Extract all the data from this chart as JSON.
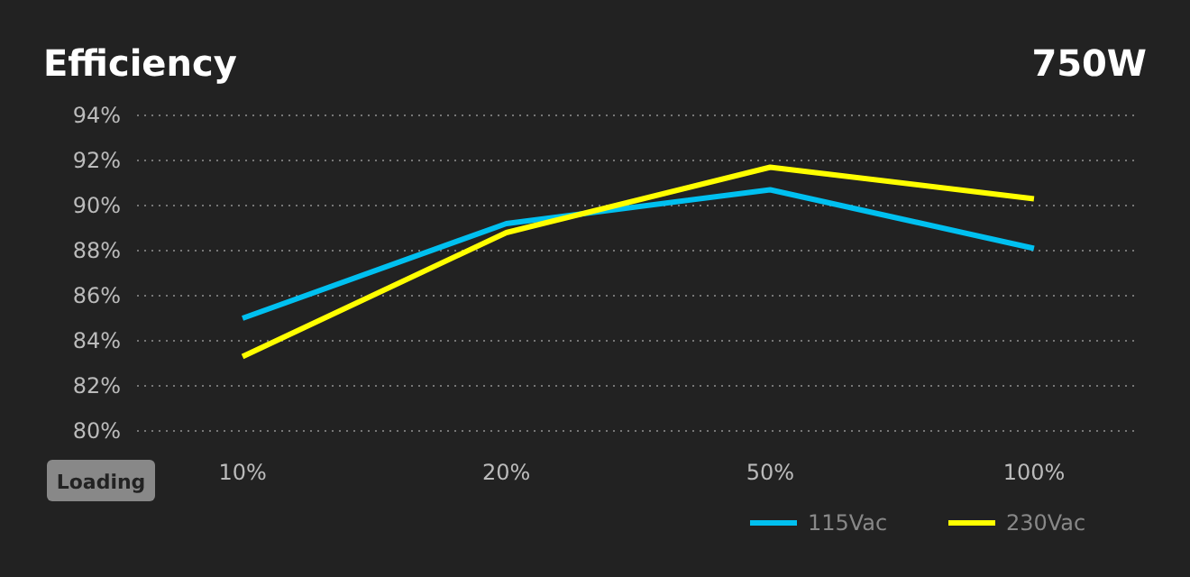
{
  "chart_data": {
    "type": "line",
    "title": "Efficiency",
    "subtitle": "750W",
    "categories": [
      "10%",
      "20%",
      "50%",
      "100%"
    ],
    "series": [
      {
        "name": "115Vac",
        "color": "#00c0f0",
        "values": [
          85.0,
          89.2,
          90.7,
          88.1
        ]
      },
      {
        "name": "230Vac",
        "color": "#ffff00",
        "values": [
          83.3,
          88.8,
          91.7,
          90.3
        ]
      }
    ],
    "ylim": [
      80,
      94
    ],
    "yticks": [
      {
        "value": 80,
        "label": "80%"
      },
      {
        "value": 82,
        "label": "82%"
      },
      {
        "value": 84,
        "label": "84%"
      },
      {
        "value": 86,
        "label": "86%"
      },
      {
        "value": 88,
        "label": "88%"
      },
      {
        "value": 90,
        "label": "90%"
      },
      {
        "value": 92,
        "label": "92%"
      },
      {
        "value": 94,
        "label": "94%"
      }
    ],
    "grid": "y",
    "legend": "bottom right",
    "marker": "none",
    "line_style": "solid",
    "annotations": [
      "Loading"
    ]
  }
}
